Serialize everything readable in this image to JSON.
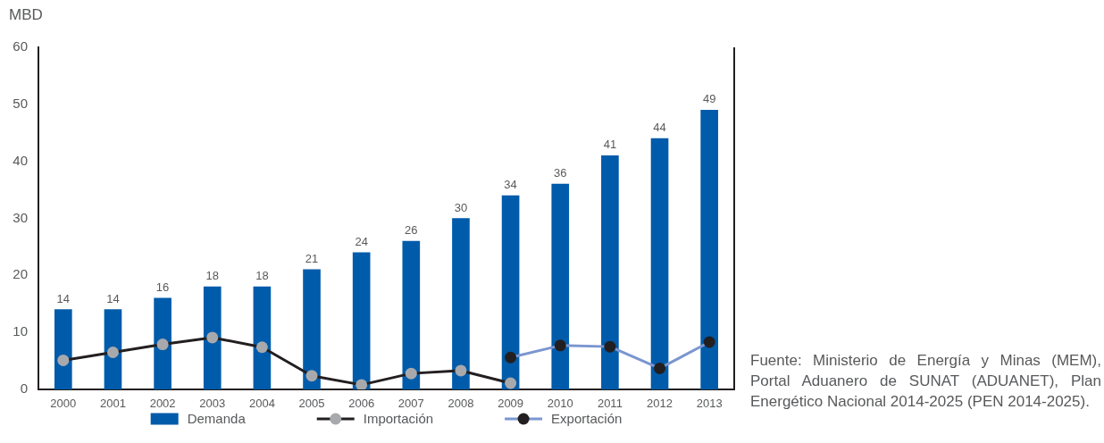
{
  "chart_data": {
    "type": "bar",
    "ylabel": "MBD",
    "categories": [
      "2000",
      "2001",
      "2002",
      "2003",
      "2004",
      "2005",
      "2006",
      "2007",
      "2008",
      "2009",
      "2010",
      "2011",
      "2012",
      "2013"
    ],
    "ylim": [
      0,
      60
    ],
    "yticks": [
      0,
      10,
      20,
      30,
      40,
      50,
      60
    ],
    "grid": false,
    "legend": "bottom",
    "marker": "circle",
    "series": [
      {
        "name": "Demanda",
        "color": "#005baa",
        "values": [
          14,
          14,
          16,
          18,
          18,
          21,
          24,
          26,
          30,
          34,
          36,
          41,
          44,
          49
        ],
        "value_labels": [
          "14",
          "14",
          "16",
          "18",
          "18",
          "21",
          "24",
          "26",
          "30",
          "34",
          "36",
          "41",
          "44",
          "49"
        ]
      },
      {
        "name": "Importación",
        "type": "line",
        "color": "#231f20",
        "colors": [
          "#a7a9ac",
          "#a7a9ac",
          "#a7a9ac",
          "#a7a9ac",
          "#a7a9ac",
          "#a7a9ac",
          "#a7a9ac",
          "#a7a9ac",
          "#a7a9ac",
          "#a7a9ac",
          "#a7a9ac",
          "#a7a9ac",
          "#a7a9ac",
          "#a7a9ac"
        ],
        "values": [
          5.1,
          6.5,
          7.9,
          9.1,
          7.4,
          2.4,
          0.8,
          2.8,
          3.3,
          1.1,
          null,
          null,
          null,
          null
        ]
      },
      {
        "name": "Exportación",
        "type": "line",
        "color": "#7b96d0",
        "colors": [
          "#231f20",
          "#231f20",
          "#231f20",
          "#231f20",
          "#231f20",
          "#231f20",
          "#231f20",
          "#231f20",
          "#231f20",
          "#231f20",
          "#231f20",
          "#231f20",
          "#231f20",
          "#231f20"
        ],
        "values": [
          null,
          null,
          null,
          null,
          null,
          null,
          null,
          null,
          null,
          5.6,
          7.7,
          7.5,
          3.7,
          8.3
        ]
      }
    ],
    "annotations": [
      "Fuente: Ministerio de Energía y Minas (MEM), Portal Aduanero de SUNAT (ADUANET), Plan Energético Nacional 2014-2025 (PEN 2014-2025)."
    ]
  }
}
